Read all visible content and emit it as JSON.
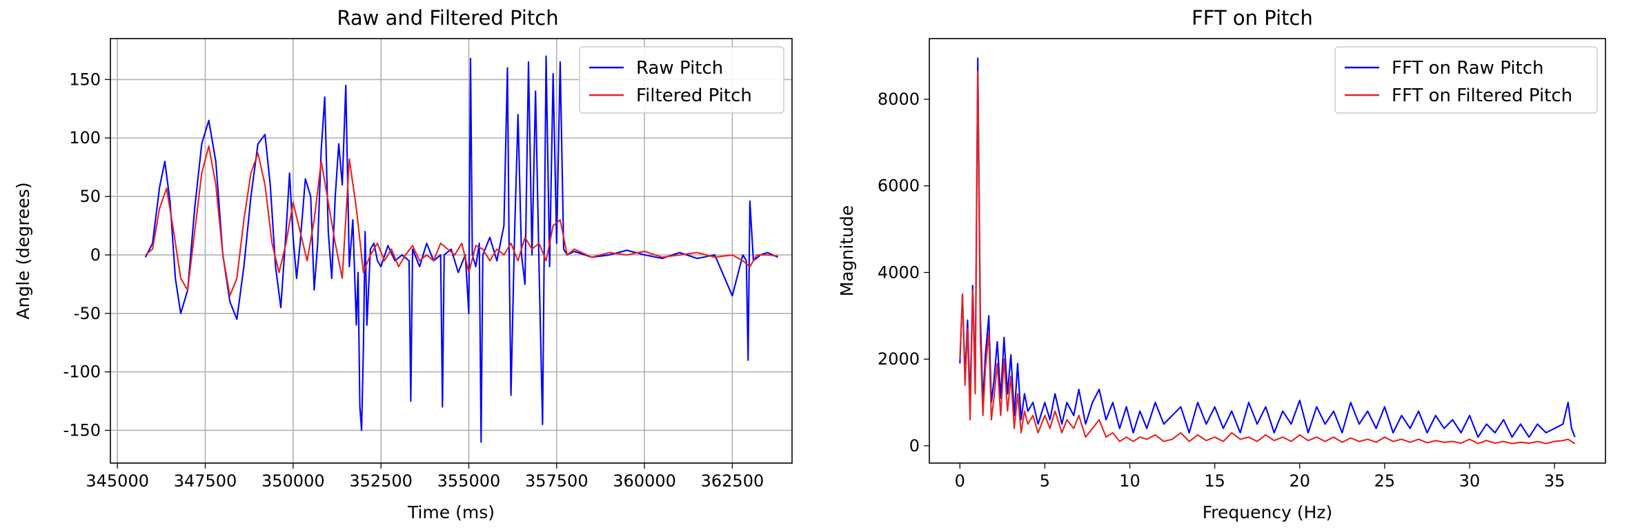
{
  "chart_data": [
    {
      "type": "line",
      "title": "Raw and Filtered Pitch",
      "xlabel": "Time (ms)",
      "ylabel": "Angle (degrees)",
      "xlim": [
        344800,
        364200
      ],
      "ylim": [
        -178,
        185
      ],
      "xticks": [
        345000,
        347500,
        350000,
        352500,
        355000,
        357500,
        360000,
        362500
      ],
      "yticks": [
        -150,
        -100,
        -50,
        0,
        50,
        100,
        150
      ],
      "grid": true,
      "legend": "top-right",
      "series": [
        {
          "name": "Raw Pitch",
          "color": "#0000ff",
          "x": [
            345800,
            346000,
            346200,
            346350,
            346500,
            346650,
            346800,
            347000,
            347200,
            347400,
            347600,
            347800,
            348000,
            348200,
            348400,
            348600,
            348800,
            349000,
            349200,
            349350,
            349500,
            349650,
            349800,
            349900,
            350000,
            350100,
            350200,
            350350,
            350500,
            350600,
            350700,
            350800,
            350900,
            351000,
            351100,
            351200,
            351300,
            351400,
            351500,
            351600,
            351700,
            351800,
            351850,
            351900,
            351950,
            352000,
            352050,
            352100,
            352200,
            352300,
            352400,
            352500,
            352700,
            352900,
            353100,
            353300,
            353350,
            353400,
            353600,
            353800,
            354000,
            354200,
            354250,
            354300,
            354500,
            354700,
            354900,
            355000,
            355050,
            355100,
            355200,
            355300,
            355350,
            355400,
            355600,
            355800,
            356000,
            356100,
            356150,
            356200,
            356300,
            356400,
            356500,
            356600,
            356700,
            356800,
            356900,
            357000,
            357100,
            357200,
            357300,
            357400,
            357500,
            357600,
            357700,
            357800,
            358000,
            358500,
            359000,
            359500,
            360000,
            360500,
            361000,
            361500,
            362000,
            362500,
            362800,
            362900,
            362950,
            363000,
            363100,
            363300,
            363500,
            363800
          ],
          "values": [
            -2,
            10,
            58,
            80,
            45,
            -20,
            -50,
            -30,
            40,
            95,
            115,
            80,
            0,
            -40,
            -55,
            -10,
            50,
            95,
            103,
            60,
            -10,
            -45,
            20,
            70,
            15,
            -20,
            10,
            65,
            50,
            -30,
            10,
            90,
            135,
            20,
            -20,
            50,
            95,
            60,
            145,
            -10,
            30,
            -60,
            -15,
            -130,
            -150,
            -80,
            20,
            -60,
            5,
            10,
            -5,
            -10,
            8,
            -5,
            0,
            -5,
            -125,
            5,
            -10,
            10,
            -5,
            0,
            -130,
            0,
            5,
            -15,
            0,
            -50,
            168,
            0,
            -10,
            10,
            -160,
            0,
            15,
            -5,
            25,
            160,
            0,
            -120,
            15,
            120,
            0,
            -25,
            165,
            0,
            140,
            -10,
            -145,
            170,
            -10,
            155,
            10,
            165,
            5,
            0,
            3,
            -2,
            0,
            4,
            0,
            -3,
            2,
            -3,
            0,
            -35,
            0,
            -5,
            -90,
            46,
            -5,
            0,
            2,
            -2
          ]
        },
        {
          "name": "Filtered Pitch",
          "color": "#e8211e",
          "x": [
            345800,
            346000,
            346200,
            346400,
            346600,
            346800,
            347000,
            347200,
            347400,
            347600,
            347800,
            348000,
            348200,
            348400,
            348600,
            348800,
            349000,
            349200,
            349400,
            349600,
            349800,
            350000,
            350200,
            350400,
            350600,
            350800,
            351000,
            351200,
            351400,
            351600,
            351800,
            352000,
            352200,
            352400,
            352600,
            352800,
            353000,
            353200,
            353400,
            353600,
            353800,
            354000,
            354200,
            354400,
            354600,
            354800,
            355000,
            355200,
            355400,
            355600,
            355800,
            356000,
            356200,
            356400,
            356600,
            356800,
            357000,
            357200,
            357400,
            357600,
            357800,
            358000,
            358500,
            359000,
            359500,
            360000,
            360500,
            361000,
            361500,
            362000,
            362500,
            362800,
            363000,
            363200,
            363500,
            363800
          ],
          "values": [
            0,
            5,
            40,
            57,
            20,
            -20,
            -30,
            20,
            70,
            93,
            60,
            0,
            -35,
            -20,
            30,
            70,
            87,
            60,
            10,
            -15,
            10,
            45,
            20,
            -5,
            30,
            80,
            45,
            10,
            -20,
            82,
            40,
            -15,
            0,
            10,
            -5,
            5,
            -10,
            0,
            8,
            -5,
            0,
            -5,
            10,
            5,
            0,
            10,
            -15,
            8,
            5,
            -5,
            5,
            0,
            10,
            -5,
            15,
            5,
            10,
            -5,
            25,
            30,
            0,
            5,
            -2,
            2,
            0,
            3,
            -2,
            0,
            2,
            -2,
            0,
            -5,
            -10,
            0,
            0,
            -1
          ]
        }
      ]
    },
    {
      "type": "line",
      "title": "FFT on Pitch",
      "xlabel": "Frequency (Hz)",
      "ylabel": "Magnitude",
      "xlim": [
        -1.8,
        38.0
      ],
      "ylim": [
        -400,
        9400
      ],
      "xticks": [
        0,
        5,
        10,
        15,
        20,
        25,
        30,
        35
      ],
      "yticks": [
        0,
        2000,
        4000,
        6000,
        8000
      ],
      "grid": false,
      "legend": "top-right",
      "series": [
        {
          "name": "FFT on Raw Pitch",
          "color": "#0000ff",
          "x": [
            0,
            0.15,
            0.3,
            0.45,
            0.6,
            0.75,
            0.9,
            1.05,
            1.2,
            1.35,
            1.5,
            1.7,
            1.85,
            2.0,
            2.2,
            2.4,
            2.6,
            2.8,
            3.0,
            3.2,
            3.4,
            3.6,
            3.8,
            4.0,
            4.3,
            4.6,
            5.0,
            5.3,
            5.6,
            6.0,
            6.3,
            6.7,
            7.0,
            7.4,
            7.8,
            8.2,
            8.6,
            9.0,
            9.4,
            9.8,
            10.2,
            10.6,
            11.0,
            11.5,
            12.0,
            12.5,
            13.0,
            13.5,
            14.0,
            14.5,
            15.0,
            15.5,
            16.0,
            16.5,
            17.0,
            17.5,
            18.0,
            18.5,
            19.0,
            19.5,
            20.0,
            20.5,
            21.0,
            21.5,
            22.0,
            22.5,
            23.0,
            23.5,
            24.0,
            24.5,
            25.0,
            25.5,
            26.0,
            26.5,
            27.0,
            27.5,
            28.0,
            28.5,
            29.0,
            29.5,
            30.0,
            30.5,
            31.0,
            31.5,
            32.0,
            32.5,
            33.0,
            33.5,
            34.0,
            34.5,
            35.0,
            35.5,
            35.8,
            36.0,
            36.2
          ],
          "values": [
            1900,
            3500,
            1600,
            2900,
            1000,
            3700,
            1500,
            8950,
            3000,
            1000,
            2100,
            3000,
            1000,
            1500,
            2400,
            1100,
            2500,
            1200,
            2100,
            700,
            1900,
            600,
            1200,
            800,
            1000,
            500,
            1000,
            600,
            1200,
            500,
            1000,
            700,
            1300,
            500,
            1000,
            1300,
            600,
            1000,
            400,
            900,
            300,
            800,
            400,
            1000,
            500,
            700,
            900,
            300,
            1000,
            500,
            900,
            400,
            800,
            300,
            1000,
            500,
            900,
            300,
            800,
            500,
            1050,
            300,
            900,
            500,
            800,
            300,
            1000,
            500,
            800,
            400,
            900,
            300,
            700,
            400,
            800,
            300,
            700,
            400,
            600,
            300,
            700,
            200,
            500,
            300,
            600,
            200,
            500,
            200,
            500,
            300,
            400,
            500,
            1000,
            400,
            200
          ]
        },
        {
          "name": "FFT on Filtered Pitch",
          "color": "#e8211e",
          "x": [
            0,
            0.15,
            0.3,
            0.45,
            0.6,
            0.75,
            0.9,
            1.05,
            1.2,
            1.35,
            1.5,
            1.7,
            1.85,
            2.0,
            2.2,
            2.4,
            2.6,
            2.8,
            3.0,
            3.2,
            3.4,
            3.6,
            3.8,
            4.0,
            4.3,
            4.6,
            5.0,
            5.3,
            5.6,
            6.0,
            6.3,
            6.7,
            7.0,
            7.4,
            7.8,
            8.2,
            8.6,
            9.0,
            9.4,
            9.8,
            10.2,
            10.6,
            11.0,
            11.5,
            12.0,
            12.5,
            13.0,
            13.5,
            14.0,
            14.5,
            15.0,
            15.5,
            16.0,
            16.5,
            17.0,
            17.5,
            18.0,
            18.5,
            19.0,
            19.5,
            20.0,
            20.5,
            21.0,
            21.5,
            22.0,
            22.5,
            23.0,
            23.5,
            24.0,
            24.5,
            25.0,
            25.5,
            26.0,
            26.5,
            27.0,
            27.5,
            28.0,
            28.5,
            29.0,
            29.5,
            30.0,
            30.5,
            31.0,
            31.5,
            32.0,
            32.5,
            33.0,
            33.5,
            34.0,
            34.5,
            35.0,
            35.5,
            35.8,
            36.0,
            36.2
          ],
          "values": [
            2000,
            3500,
            1400,
            2700,
            600,
            3600,
            1200,
            8650,
            2500,
            700,
            1800,
            2600,
            600,
            1100,
            1900,
            700,
            2000,
            800,
            1600,
            400,
            1200,
            300,
            800,
            500,
            700,
            300,
            700,
            400,
            800,
            300,
            600,
            400,
            700,
            200,
            400,
            600,
            200,
            300,
            100,
            200,
            100,
            200,
            150,
            250,
            100,
            150,
            300,
            100,
            250,
            120,
            200,
            100,
            300,
            150,
            200,
            100,
            250,
            120,
            200,
            100,
            250,
            120,
            200,
            100,
            200,
            80,
            180,
            100,
            150,
            80,
            200,
            100,
            150,
            80,
            150,
            70,
            120,
            80,
            100,
            60,
            150,
            50,
            120,
            60,
            100,
            50,
            80,
            60,
            100,
            50,
            100,
            120,
            150,
            100,
            50
          ]
        }
      ]
    }
  ]
}
